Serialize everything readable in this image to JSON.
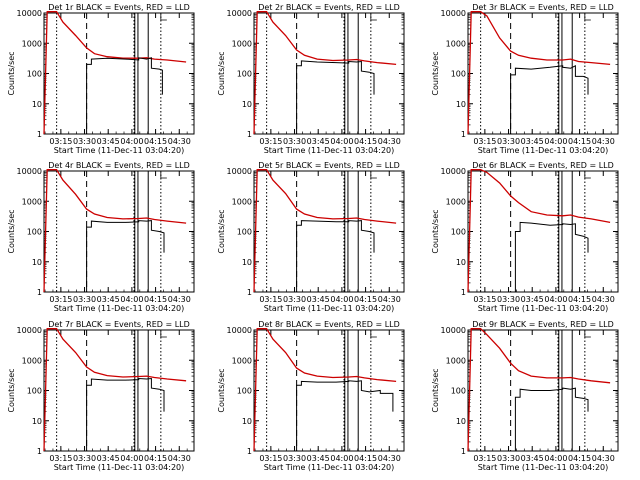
{
  "figure": {
    "ylabel": "Counts/sec",
    "xlabel": "Start Time (11-Dec-11 03:04:20)",
    "x_ticks": [
      "03:15",
      "03:30",
      "03:45",
      "04:00",
      "04:15",
      "04:30"
    ],
    "y_ticks": [
      "1",
      "10",
      "100",
      "1000",
      "10000"
    ],
    "colors": {
      "events": "#000000",
      "lld": "#cc0000"
    }
  },
  "chart_data": [
    {
      "type": "line",
      "title": "Det 1r BLACK = Events, RED = LLD",
      "xlabel": "Start Time (11-Dec-11 03:04:20)",
      "ylabel": "Counts/sec",
      "x_unit": "minutes after 03:04:20",
      "xlim": [
        0,
        95
      ],
      "ylim": [
        1,
        10000
      ],
      "yscale": "log",
      "events": [
        [
          2,
          0
        ],
        [
          27,
          0
        ],
        [
          27,
          200
        ],
        [
          30,
          200
        ],
        [
          30,
          300
        ],
        [
          40,
          320
        ],
        [
          52,
          300
        ],
        [
          60,
          280
        ],
        [
          60,
          330
        ],
        [
          65,
          300
        ],
        [
          68,
          330
        ],
        [
          68,
          150
        ],
        [
          73,
          140
        ],
        [
          75,
          130
        ],
        [
          75,
          20
        ]
      ],
      "lld": [
        [
          0,
          1
        ],
        [
          2,
          11000
        ],
        [
          8,
          11000
        ],
        [
          12,
          5000
        ],
        [
          20,
          1800
        ],
        [
          27,
          700
        ],
        [
          32,
          450
        ],
        [
          40,
          360
        ],
        [
          50,
          320
        ],
        [
          60,
          320
        ],
        [
          65,
          330
        ],
        [
          70,
          300
        ],
        [
          78,
          280
        ],
        [
          90,
          240
        ]
      ],
      "vlines_dotted": [
        8,
        57,
        74
      ],
      "vlines_dashed": [
        27
      ],
      "vlines_solid": [
        57.5,
        59.5,
        66
      ]
    },
    {
      "type": "line",
      "title": "Det 2r BLACK = Events, RED = LLD",
      "xlabel": "Start Time (11-Dec-11 03:04:20)",
      "ylabel": "Counts/sec",
      "x_unit": "minutes after 03:04:20",
      "xlim": [
        0,
        95
      ],
      "ylim": [
        1,
        10000
      ],
      "yscale": "log",
      "events": [
        [
          2,
          0
        ],
        [
          27,
          0
        ],
        [
          27,
          180
        ],
        [
          30,
          180
        ],
        [
          30,
          260
        ],
        [
          40,
          240
        ],
        [
          52,
          230
        ],
        [
          60,
          220
        ],
        [
          60,
          250
        ],
        [
          65,
          240
        ],
        [
          68,
          250
        ],
        [
          68,
          120
        ],
        [
          73,
          110
        ],
        [
          76,
          100
        ],
        [
          76,
          20
        ]
      ],
      "lld": [
        [
          0,
          1
        ],
        [
          2,
          11000
        ],
        [
          8,
          11000
        ],
        [
          12,
          5000
        ],
        [
          20,
          1800
        ],
        [
          27,
          600
        ],
        [
          32,
          400
        ],
        [
          40,
          300
        ],
        [
          50,
          270
        ],
        [
          60,
          280
        ],
        [
          65,
          290
        ],
        [
          70,
          260
        ],
        [
          78,
          230
        ],
        [
          90,
          200
        ]
      ],
      "vlines_dotted": [
        8,
        57,
        74
      ],
      "vlines_dashed": [
        27
      ],
      "vlines_solid": [
        57.5,
        59.5,
        66
      ]
    },
    {
      "type": "line",
      "title": "Det 3r BLACK = Events, RED = LLD",
      "xlabel": "Start Time (11-Dec-11 03:04:20)",
      "ylabel": "Counts/sec",
      "x_unit": "minutes after 03:04:20",
      "xlim": [
        0,
        95
      ],
      "ylim": [
        1,
        10000
      ],
      "yscale": "log",
      "events": [
        [
          2,
          0
        ],
        [
          27,
          0
        ],
        [
          27,
          90
        ],
        [
          30,
          90
        ],
        [
          30,
          150
        ],
        [
          40,
          140
        ],
        [
          52,
          160
        ],
        [
          60,
          180
        ],
        [
          60,
          160
        ],
        [
          65,
          150
        ],
        [
          68,
          180
        ],
        [
          68,
          80
        ],
        [
          73,
          80
        ],
        [
          76,
          70
        ],
        [
          76,
          20
        ]
      ],
      "lld": [
        [
          0,
          1
        ],
        [
          2,
          11000
        ],
        [
          8,
          11000
        ],
        [
          12,
          8000
        ],
        [
          20,
          1500
        ],
        [
          27,
          550
        ],
        [
          32,
          400
        ],
        [
          40,
          320
        ],
        [
          50,
          280
        ],
        [
          60,
          280
        ],
        [
          65,
          300
        ],
        [
          70,
          250
        ],
        [
          78,
          230
        ],
        [
          90,
          200
        ]
      ],
      "vlines_dotted": [
        8,
        57,
        74
      ],
      "vlines_dashed": [
        27
      ],
      "vlines_solid": [
        57.5,
        59.5,
        66
      ]
    },
    {
      "type": "line",
      "title": "Det 4r BLACK = Events, RED = LLD",
      "xlabel": "Start Time (11-Dec-11 03:04:20)",
      "ylabel": "Counts/sec",
      "x_unit": "minutes after 03:04:20",
      "xlim": [
        0,
        95
      ],
      "ylim": [
        1,
        10000
      ],
      "yscale": "log",
      "events": [
        [
          2,
          0
        ],
        [
          27,
          0
        ],
        [
          27,
          140
        ],
        [
          30,
          140
        ],
        [
          30,
          220
        ],
        [
          40,
          200
        ],
        [
          52,
          200
        ],
        [
          60,
          210
        ],
        [
          60,
          230
        ],
        [
          65,
          220
        ],
        [
          68,
          230
        ],
        [
          68,
          110
        ],
        [
          73,
          100
        ],
        [
          76,
          90
        ],
        [
          76,
          20
        ]
      ],
      "lld": [
        [
          0,
          1
        ],
        [
          2,
          11000
        ],
        [
          8,
          11000
        ],
        [
          12,
          5000
        ],
        [
          20,
          1700
        ],
        [
          27,
          550
        ],
        [
          32,
          380
        ],
        [
          40,
          290
        ],
        [
          50,
          260
        ],
        [
          60,
          270
        ],
        [
          65,
          280
        ],
        [
          70,
          250
        ],
        [
          78,
          220
        ],
        [
          90,
          190
        ]
      ],
      "vlines_dotted": [
        8,
        57,
        74
      ],
      "vlines_dashed": [
        27
      ],
      "vlines_solid": [
        57.5,
        59.5,
        66
      ]
    },
    {
      "type": "line",
      "title": "Det 5r BLACK = Events, RED = LLD",
      "xlabel": "Start Time (11-Dec-11 03:04:20)",
      "ylabel": "Counts/sec",
      "x_unit": "minutes after 03:04:20",
      "xlim": [
        0,
        95
      ],
      "ylim": [
        1,
        10000
      ],
      "yscale": "log",
      "events": [
        [
          2,
          0
        ],
        [
          27,
          0
        ],
        [
          27,
          160
        ],
        [
          30,
          160
        ],
        [
          30,
          230
        ],
        [
          40,
          220
        ],
        [
          52,
          210
        ],
        [
          60,
          210
        ],
        [
          60,
          230
        ],
        [
          65,
          220
        ],
        [
          68,
          230
        ],
        [
          68,
          110
        ],
        [
          73,
          100
        ],
        [
          76,
          90
        ],
        [
          76,
          20
        ]
      ],
      "lld": [
        [
          0,
          1
        ],
        [
          2,
          11000
        ],
        [
          8,
          11000
        ],
        [
          12,
          5000
        ],
        [
          20,
          1800
        ],
        [
          27,
          550
        ],
        [
          32,
          380
        ],
        [
          40,
          290
        ],
        [
          50,
          260
        ],
        [
          60,
          270
        ],
        [
          65,
          280
        ],
        [
          70,
          250
        ],
        [
          78,
          220
        ],
        [
          90,
          190
        ]
      ],
      "vlines_dotted": [
        8,
        57,
        74
      ],
      "vlines_dashed": [
        27
      ],
      "vlines_solid": [
        57.5,
        59.5,
        66
      ]
    },
    {
      "type": "line",
      "title": "Det 6r BLACK = Events, RED = LLD",
      "xlabel": "Start Time (11-Dec-11 03:04:20)",
      "ylabel": "Counts/sec",
      "x_unit": "minutes after 03:04:20",
      "xlim": [
        0,
        95
      ],
      "ylim": [
        1,
        10000
      ],
      "yscale": "log",
      "events": [
        [
          2,
          0
        ],
        [
          30,
          0
        ],
        [
          30,
          100
        ],
        [
          33,
          100
        ],
        [
          33,
          200
        ],
        [
          40,
          190
        ],
        [
          52,
          160
        ],
        [
          60,
          170
        ],
        [
          60,
          180
        ],
        [
          65,
          170
        ],
        [
          68,
          180
        ],
        [
          68,
          80
        ],
        [
          73,
          70
        ],
        [
          76,
          60
        ],
        [
          76,
          20
        ]
      ],
      "lld": [
        [
          0,
          1
        ],
        [
          2,
          11000
        ],
        [
          8,
          11000
        ],
        [
          12,
          9000
        ],
        [
          20,
          4000
        ],
        [
          27,
          1500
        ],
        [
          32,
          900
        ],
        [
          40,
          450
        ],
        [
          50,
          350
        ],
        [
          60,
          330
        ],
        [
          65,
          350
        ],
        [
          70,
          300
        ],
        [
          78,
          260
        ],
        [
          90,
          200
        ]
      ],
      "vlines_dotted": [
        8,
        57,
        74
      ],
      "vlines_dashed": [
        27
      ],
      "vlines_solid": [
        57.5,
        59.5,
        66
      ]
    },
    {
      "type": "line",
      "title": "Det 7r BLACK = Events, RED = LLD",
      "xlabel": "Start Time (11-Dec-11 03:04:20)",
      "ylabel": "Counts/sec",
      "x_unit": "minutes after 03:04:20",
      "xlim": [
        0,
        95
      ],
      "ylim": [
        1,
        10000
      ],
      "yscale": "log",
      "events": [
        [
          2,
          0
        ],
        [
          27,
          0
        ],
        [
          27,
          150
        ],
        [
          30,
          150
        ],
        [
          30,
          240
        ],
        [
          40,
          220
        ],
        [
          52,
          220
        ],
        [
          60,
          230
        ],
        [
          60,
          250
        ],
        [
          65,
          240
        ],
        [
          68,
          250
        ],
        [
          68,
          120
        ],
        [
          73,
          110
        ],
        [
          76,
          100
        ],
        [
          76,
          20
        ]
      ],
      "lld": [
        [
          0,
          1
        ],
        [
          2,
          11000
        ],
        [
          8,
          11000
        ],
        [
          12,
          5000
        ],
        [
          20,
          1800
        ],
        [
          27,
          600
        ],
        [
          32,
          400
        ],
        [
          40,
          310
        ],
        [
          50,
          280
        ],
        [
          60,
          290
        ],
        [
          65,
          300
        ],
        [
          70,
          270
        ],
        [
          78,
          240
        ],
        [
          90,
          210
        ]
      ],
      "vlines_dotted": [
        8,
        57,
        74
      ],
      "vlines_dashed": [
        27
      ],
      "vlines_solid": [
        57.5,
        59.5,
        66
      ]
    },
    {
      "type": "line",
      "title": "Det 8r BLACK = Events, RED = LLD",
      "xlabel": "Start Time (11-Dec-11 03:04:20)",
      "ylabel": "Counts/sec",
      "x_unit": "minutes after 03:04:20",
      "xlim": [
        0,
        95
      ],
      "ylim": [
        1,
        10000
      ],
      "yscale": "log",
      "events": [
        [
          2,
          0
        ],
        [
          27,
          0
        ],
        [
          27,
          150
        ],
        [
          30,
          150
        ],
        [
          30,
          200
        ],
        [
          40,
          190
        ],
        [
          52,
          190
        ],
        [
          60,
          200
        ],
        [
          60,
          210
        ],
        [
          65,
          200
        ],
        [
          68,
          210
        ],
        [
          68,
          100
        ],
        [
          73,
          90
        ],
        [
          80,
          100
        ],
        [
          80,
          80
        ],
        [
          88,
          80
        ],
        [
          88,
          20
        ]
      ],
      "lld": [
        [
          0,
          1
        ],
        [
          2,
          11000
        ],
        [
          8,
          11000
        ],
        [
          12,
          5000
        ],
        [
          20,
          1800
        ],
        [
          27,
          550
        ],
        [
          32,
          380
        ],
        [
          40,
          300
        ],
        [
          50,
          270
        ],
        [
          60,
          280
        ],
        [
          65,
          290
        ],
        [
          70,
          260
        ],
        [
          78,
          230
        ],
        [
          90,
          200
        ]
      ],
      "vlines_dotted": [
        8,
        57,
        74
      ],
      "vlines_dashed": [
        27
      ],
      "vlines_solid": [
        57.5,
        59.5,
        66
      ]
    },
    {
      "type": "line",
      "title": "Det 9r BLACK = Events, RED = LLD",
      "xlabel": "Start Time (11-Dec-11 03:04:20)",
      "ylabel": "Counts/sec",
      "x_unit": "minutes after 03:04:20",
      "xlim": [
        0,
        95
      ],
      "ylim": [
        1,
        10000
      ],
      "yscale": "log",
      "events": [
        [
          2,
          0
        ],
        [
          30,
          0
        ],
        [
          30,
          60
        ],
        [
          33,
          60
        ],
        [
          33,
          110
        ],
        [
          40,
          100
        ],
        [
          52,
          100
        ],
        [
          60,
          110
        ],
        [
          60,
          120
        ],
        [
          65,
          110
        ],
        [
          68,
          120
        ],
        [
          68,
          60
        ],
        [
          73,
          55
        ],
        [
          76,
          50
        ],
        [
          76,
          20
        ]
      ],
      "lld": [
        [
          0,
          1
        ],
        [
          2,
          11000
        ],
        [
          8,
          11000
        ],
        [
          12,
          7000
        ],
        [
          20,
          2500
        ],
        [
          27,
          800
        ],
        [
          32,
          450
        ],
        [
          40,
          300
        ],
        [
          50,
          260
        ],
        [
          60,
          260
        ],
        [
          65,
          270
        ],
        [
          70,
          240
        ],
        [
          78,
          210
        ],
        [
          90,
          180
        ]
      ],
      "vlines_dotted": [
        8,
        57,
        74
      ],
      "vlines_dashed": [
        27
      ],
      "vlines_solid": [
        57.5,
        59.5,
        66
      ]
    }
  ]
}
